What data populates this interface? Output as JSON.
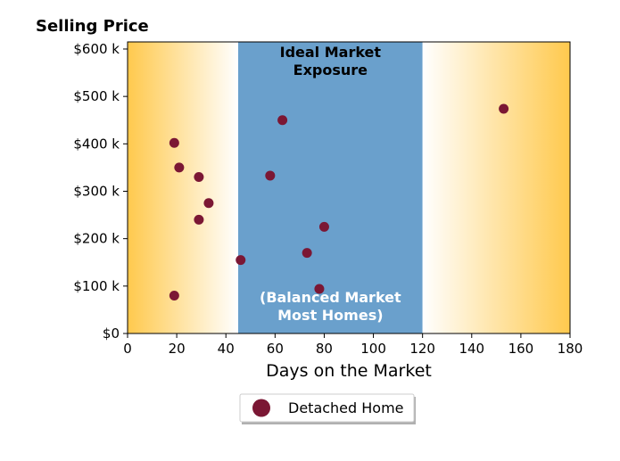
{
  "chart_data": {
    "type": "scatter",
    "title": "Selling Price",
    "xlabel": "Days on the Market",
    "ylabel": "",
    "xlim": [
      0,
      180
    ],
    "ylim": [
      0,
      615000
    ],
    "x_ticks": [
      0,
      20,
      40,
      60,
      80,
      100,
      120,
      140,
      160,
      180
    ],
    "y_ticks": [
      {
        "value": 0,
        "label": "$0"
      },
      {
        "value": 100000,
        "label": "$100 k"
      },
      {
        "value": 200000,
        "label": "$200 k"
      },
      {
        "value": 300000,
        "label": "$300 k"
      },
      {
        "value": 400000,
        "label": "$400 k"
      },
      {
        "value": 500000,
        "label": "$500 k"
      },
      {
        "value": 600000,
        "label": "$600 k"
      }
    ],
    "grid": false,
    "legend_position": "bottom-center",
    "background_bands": [
      {
        "from": 0,
        "to": 45,
        "style": "gradient",
        "color_edge": "#ffc94d",
        "color_inner": "#ffffff"
      },
      {
        "from": 45,
        "to": 120,
        "style": "solid",
        "color": "#6aa0cc",
        "label_top": [
          "Ideal Market",
          "Exposure"
        ],
        "label_bottom": [
          "(Balanced Market",
          "Most Homes)"
        ]
      },
      {
        "from": 120,
        "to": 180,
        "style": "gradient",
        "color_edge": "#ffc94d",
        "color_inner": "#ffffff"
      }
    ],
    "series": [
      {
        "name": "Detached Home",
        "color": "#7b1734",
        "points": [
          {
            "x": 19,
            "y": 80000
          },
          {
            "x": 19,
            "y": 402000
          },
          {
            "x": 21,
            "y": 350000
          },
          {
            "x": 29,
            "y": 330000
          },
          {
            "x": 29,
            "y": 240000
          },
          {
            "x": 33,
            "y": 275000
          },
          {
            "x": 46,
            "y": 155000
          },
          {
            "x": 58,
            "y": 333000
          },
          {
            "x": 63,
            "y": 450000
          },
          {
            "x": 73,
            "y": 170000
          },
          {
            "x": 78,
            "y": 94000
          },
          {
            "x": 80,
            "y": 225000
          },
          {
            "x": 153,
            "y": 474000
          }
        ]
      }
    ]
  }
}
